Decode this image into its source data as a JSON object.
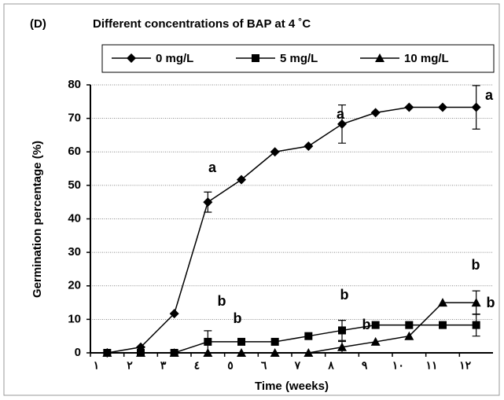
{
  "chart_data": {
    "type": "line",
    "panel_label": "(D)",
    "title": "Different concentrations of BAP at 4 ˚C",
    "x_label": "Time (weeks)",
    "y_label": "Germination percentage (%)",
    "categories": [
      "١",
      "٢",
      "٣",
      "٤",
      "٥",
      "٦",
      "٧",
      "٨",
      "٩",
      "١٠",
      "١١",
      "١٢"
    ],
    "series": [
      {
        "name": "0 mg/L",
        "color": "#000000",
        "marker": "diamond",
        "values": [
          0,
          1.7,
          11.7,
          45,
          51.7,
          60,
          61.7,
          68.3,
          71.7,
          73.3,
          73.3,
          73.3
        ],
        "errors": [
          null,
          null,
          null,
          3,
          null,
          null,
          null,
          5.7,
          null,
          null,
          null,
          6.5
        ]
      },
      {
        "name": "5 mg/L",
        "color": "#000000",
        "marker": "square",
        "values": [
          0,
          0,
          0,
          3.3,
          3.3,
          3.3,
          5,
          6.7,
          8.3,
          8.3,
          8.3,
          8.3
        ],
        "errors": [
          null,
          null,
          null,
          3.3,
          null,
          null,
          null,
          3,
          null,
          null,
          null,
          3.3
        ]
      },
      {
        "name": "10 mg/L",
        "color": "#000000",
        "marker": "triangle",
        "values": [
          0,
          0,
          0,
          0,
          0,
          0,
          0,
          1.7,
          3.3,
          5,
          15,
          15
        ],
        "errors": [
          null,
          null,
          null,
          null,
          null,
          null,
          null,
          1.7,
          null,
          null,
          null,
          3.5
        ]
      }
    ],
    "annotations": [
      "a",
      "a",
      "a",
      "b",
      "b",
      "b",
      "b",
      "b",
      "b"
    ],
    "ylim": [
      0,
      80
    ],
    "yticks": [
      0,
      10,
      20,
      30,
      40,
      50,
      60,
      70,
      80
    ],
    "grid": true
  }
}
